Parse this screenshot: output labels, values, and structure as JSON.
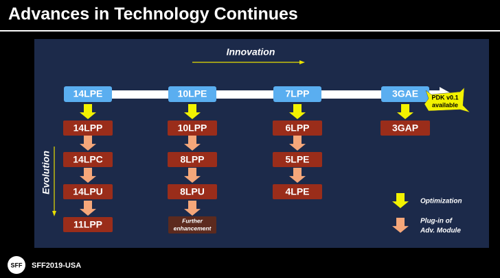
{
  "header": {
    "title": "Advances in Technology Continues"
  },
  "innovation_label": "Innovation",
  "evolution_label": "Evolution",
  "columns": [
    {
      "base": "14LPE",
      "nodes": [
        "14LPP",
        "14LPC",
        "14LPU",
        "11LPP"
      ]
    },
    {
      "base": "10LPE",
      "nodes": [
        "10LPP",
        "8LPP",
        "8LPU"
      ],
      "note": [
        "Further",
        "enhancement"
      ]
    },
    {
      "base": "7LPP",
      "nodes": [
        "6LPP",
        "5LPE",
        "4LPE"
      ]
    },
    {
      "base": "3GAE",
      "nodes": [
        "3GAP"
      ],
      "badge": [
        "PDK v0.1",
        "available"
      ]
    }
  ],
  "legend": [
    {
      "lines": [
        "Optimization"
      ]
    },
    {
      "lines": [
        "Plug-in of",
        "Adv. Module"
      ]
    }
  ],
  "footer": {
    "logo": "SFF",
    "event": "SFF2019-USA"
  }
}
